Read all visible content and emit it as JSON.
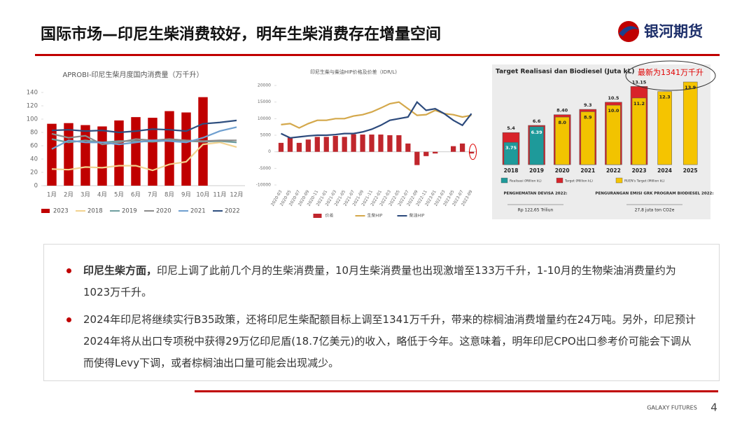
{
  "header": {
    "title": "国际市场—印尼生柴消费较好，明年生柴消费存在增量空间",
    "logo": "银河期货"
  },
  "chart_data": [
    {
      "type": "combo",
      "title": "APROBI-印尼生柴月度国内消费量（万千升）",
      "categories": [
        "1月",
        "2月",
        "3月",
        "4月",
        "5月",
        "6月",
        "7月",
        "8月",
        "9月",
        "10月",
        "11月",
        "12月"
      ],
      "ylim": [
        0,
        140
      ],
      "yticks": [
        0,
        20,
        40,
        60,
        80,
        100,
        120,
        140
      ],
      "grid": false,
      "series": [
        {
          "name": "2023",
          "kind": "bar",
          "color": "#c00000",
          "values": [
            93,
            94,
            91,
            89,
            98,
            103,
            102,
            112,
            110,
            133,
            null,
            null
          ]
        },
        {
          "name": "2018",
          "kind": "line",
          "color": "#f2d28f",
          "values": [
            25,
            24,
            28,
            27,
            30,
            30,
            23,
            32,
            36,
            62,
            65,
            58
          ]
        },
        {
          "name": "2019",
          "kind": "line",
          "color": "#6f9fa0",
          "values": [
            70,
            65,
            68,
            65,
            67,
            67,
            66,
            68,
            67,
            66,
            67,
            65
          ]
        },
        {
          "name": "2020",
          "kind": "line",
          "color": "#8c8c8c",
          "values": [
            78,
            72,
            75,
            62,
            65,
            70,
            68,
            70,
            68,
            67,
            68,
            68
          ]
        },
        {
          "name": "2021",
          "kind": "line",
          "color": "#6f9fcf",
          "values": [
            55,
            68,
            65,
            65,
            62,
            65,
            68,
            67,
            65,
            72,
            82,
            88
          ]
        },
        {
          "name": "2022",
          "kind": "line",
          "color": "#2f4f7f",
          "values": [
            83,
            84,
            82,
            83,
            80,
            82,
            85,
            84,
            82,
            93,
            95,
            98
          ]
        }
      ]
    },
    {
      "type": "combo",
      "title": "印尼生柴与柴油HIP价格及价差（IDR/L)",
      "categories": [
        "2020-03",
        "2020-05",
        "2020-07",
        "2020-09",
        "2020-11",
        "2021-01",
        "2021-03",
        "2021-05",
        "2021-07",
        "2021-09",
        "2021-11",
        "2022-01",
        "2022-03",
        "2022-05",
        "2022-07",
        "2022-09",
        "2022-11",
        "2023-01",
        "2023-03",
        "2023-05",
        "2023-07",
        "2023-09"
      ],
      "ylim": [
        -10000,
        20000
      ],
      "yticks": [
        -10000,
        -5000,
        0,
        5000,
        10000,
        15000,
        20000
      ],
      "grid": false,
      "series": [
        {
          "name": "价差",
          "kind": "bar",
          "color": "#c0262c",
          "values": [
            2700,
            4300,
            2700,
            3700,
            4500,
            4500,
            4800,
            4500,
            5300,
            5200,
            5200,
            5200,
            5000,
            5000,
            2500,
            -4000,
            -1300,
            -500,
            0,
            1700,
            2500,
            -500
          ]
        },
        {
          "name": "生柴HIP",
          "kind": "line",
          "color": "#d4a84b",
          "values": [
            8200,
            8500,
            7200,
            8500,
            9500,
            9500,
            10000,
            10000,
            10800,
            11200,
            12000,
            13200,
            14500,
            15000,
            13000,
            11000,
            11200,
            12500,
            11500,
            11200,
            10500,
            11000
          ]
        },
        {
          "name": "柴油HIP",
          "kind": "line",
          "color": "#2c4a7c",
          "values": [
            5500,
            4200,
            4500,
            4800,
            5000,
            5000,
            5200,
            5500,
            5500,
            6000,
            6800,
            8000,
            9500,
            10000,
            10500,
            15000,
            12500,
            13000,
            11500,
            9500,
            8000,
            11500
          ]
        }
      ]
    },
    {
      "type": "bar",
      "title": "Target Realisasi dan Biodiesel (Juta kL)",
      "categories": [
        "2018",
        "2019",
        "2020",
        "2021",
        "2022",
        "2023",
        "2024",
        "2025"
      ],
      "series": [
        {
          "name": "Target (Million kL)",
          "color": "#d8232a",
          "values": [
            5.4,
            6.6,
            8.4,
            9.3,
            10.5,
            13.15,
            null,
            null
          ],
          "value_labels": [
            "5.4",
            "6.6",
            "8.40",
            "9.3",
            "10.5",
            "13.15",
            null,
            null
          ]
        },
        {
          "name": "Realisasi (Million kL)",
          "color": "#1e9a9a",
          "colors": [
            "#1e9a9a",
            "#1e9a9a",
            "#f2c300",
            "#f2c300",
            "#f2c300",
            "#f2c300",
            null,
            null
          ],
          "values": [
            3.75,
            6.39,
            8.0,
            8.9,
            10.0,
            11.2,
            null,
            null
          ],
          "value_labels": [
            "3.75",
            "6.39",
            "8.0",
            "8.9",
            "10.0",
            "11.2",
            null,
            null
          ]
        },
        {
          "name": "RUEN's Target (Million kL)",
          "color": "#f5c400",
          "values": [
            null,
            null,
            null,
            null,
            null,
            null,
            12.3,
            13.9
          ],
          "value_labels": [
            null,
            null,
            null,
            null,
            null,
            null,
            "12.3",
            "13.9"
          ]
        }
      ],
      "annotation": "最新为1341万千升",
      "notes": [
        {
          "label": "PENGHEMATAN DEVISA 2022:",
          "value": "Rp 122,65 Triliun"
        },
        {
          "label": "PENGURANGAN EMISI GRK PROGRAM BIODIESEL 2022:",
          "value": "27,8 juta ton CO2e"
        }
      ]
    }
  ],
  "bullets": [
    {
      "bold": "印尼生柴方面，",
      "text": "印尼上调了此前几个月的生柴消费量，10月生柴消费量也出现激增至133万千升，1-10月的生物柴油消费量约为1023万千升。"
    },
    {
      "text": "2024年印尼将继续实行B35政策，还将印尼生柴配额目标上调至1341万千升，带来的棕榈油消费增量约在24万吨。另外，印尼预计2024年将从出口专项税中获得29万亿印尼盾(18.7亿美元)的收入，略低于今年。这意味着，明年印尼CPO出口参考价可能会下调从而使得Levy下调，或者棕榈油出口量可能会出现减少。"
    }
  ],
  "footer": {
    "brand": "GALAXY FUTURES",
    "page": 4
  }
}
